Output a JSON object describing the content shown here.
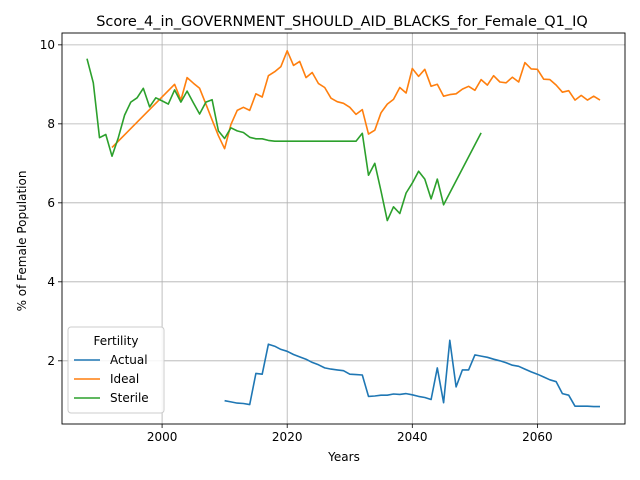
{
  "chart_data": {
    "type": "line",
    "title": "Score_4_in_GOVERNMENT_SHOULD_AID_BLACKS_for_Female_Q1_IQ",
    "xlabel": "Years",
    "ylabel": "% of Female Population",
    "xlim": [
      1984,
      2074
    ],
    "ylim": [
      0.4,
      10.3
    ],
    "xticks": [
      2000,
      2020,
      2040,
      2060
    ],
    "yticks": [
      2,
      4,
      6,
      8,
      10
    ],
    "grid": true,
    "legend": {
      "title": "Fertility",
      "position": "lower-left"
    },
    "series": [
      {
        "name": "Actual",
        "color": "#1f77b4",
        "points": [
          [
            2010,
            0.99
          ],
          [
            2011,
            0.96
          ],
          [
            2012,
            0.93
          ],
          [
            2013,
            0.92
          ],
          [
            2014,
            0.89
          ],
          [
            2015,
            1.68
          ],
          [
            2016,
            1.66
          ],
          [
            2017,
            2.42
          ],
          [
            2018,
            2.37
          ],
          [
            2019,
            2.29
          ],
          [
            2020,
            2.24
          ],
          [
            2021,
            2.16
          ],
          [
            2022,
            2.1
          ],
          [
            2023,
            2.04
          ],
          [
            2024,
            1.96
          ],
          [
            2025,
            1.9
          ],
          [
            2026,
            1.82
          ],
          [
            2027,
            1.79
          ],
          [
            2028,
            1.77
          ],
          [
            2029,
            1.75
          ],
          [
            2030,
            1.66
          ],
          [
            2031,
            1.65
          ],
          [
            2032,
            1.64
          ],
          [
            2033,
            1.1
          ],
          [
            2034,
            1.11
          ],
          [
            2035,
            1.13
          ],
          [
            2036,
            1.13
          ],
          [
            2037,
            1.16
          ],
          [
            2038,
            1.15
          ],
          [
            2039,
            1.17
          ],
          [
            2040,
            1.14
          ],
          [
            2041,
            1.1
          ],
          [
            2042,
            1.07
          ],
          [
            2043,
            1.02
          ],
          [
            2044,
            1.82
          ],
          [
            2045,
            0.94
          ],
          [
            2046,
            2.52
          ],
          [
            2047,
            1.34
          ],
          [
            2048,
            1.77
          ],
          [
            2049,
            1.77
          ],
          [
            2050,
            2.15
          ],
          [
            2051,
            2.12
          ],
          [
            2052,
            2.09
          ],
          [
            2053,
            2.04
          ],
          [
            2054,
            2.0
          ],
          [
            2055,
            1.95
          ],
          [
            2056,
            1.89
          ],
          [
            2057,
            1.86
          ],
          [
            2058,
            1.79
          ],
          [
            2059,
            1.72
          ],
          [
            2060,
            1.66
          ],
          [
            2061,
            1.59
          ],
          [
            2062,
            1.52
          ],
          [
            2063,
            1.47
          ],
          [
            2064,
            1.17
          ],
          [
            2065,
            1.13
          ],
          [
            2066,
            0.85
          ],
          [
            2067,
            0.85
          ],
          [
            2068,
            0.85
          ],
          [
            2069,
            0.84
          ],
          [
            2070,
            0.84
          ]
        ]
      },
      {
        "name": "Ideal",
        "color": "#ff7f0e",
        "points": [
          [
            1992,
            7.4
          ],
          [
            2002,
            9.0
          ],
          [
            2003,
            8.6
          ],
          [
            2004,
            9.17
          ],
          [
            2005,
            9.03
          ],
          [
            2006,
            8.9
          ],
          [
            2007,
            8.5
          ],
          [
            2008,
            8.1
          ],
          [
            2009,
            7.7
          ],
          [
            2010,
            7.37
          ],
          [
            2011,
            7.98
          ],
          [
            2012,
            8.34
          ],
          [
            2013,
            8.42
          ],
          [
            2014,
            8.34
          ],
          [
            2015,
            8.76
          ],
          [
            2016,
            8.68
          ],
          [
            2017,
            9.22
          ],
          [
            2018,
            9.32
          ],
          [
            2019,
            9.45
          ],
          [
            2020,
            9.85
          ],
          [
            2021,
            9.48
          ],
          [
            2022,
            9.58
          ],
          [
            2023,
            9.17
          ],
          [
            2024,
            9.3
          ],
          [
            2025,
            9.02
          ],
          [
            2026,
            8.92
          ],
          [
            2027,
            8.65
          ],
          [
            2028,
            8.56
          ],
          [
            2029,
            8.52
          ],
          [
            2030,
            8.42
          ],
          [
            2031,
            8.24
          ],
          [
            2032,
            8.36
          ],
          [
            2033,
            7.74
          ],
          [
            2034,
            7.84
          ],
          [
            2035,
            8.28
          ],
          [
            2036,
            8.5
          ],
          [
            2037,
            8.62
          ],
          [
            2038,
            8.92
          ],
          [
            2039,
            8.78
          ],
          [
            2040,
            9.4
          ],
          [
            2041,
            9.2
          ],
          [
            2042,
            9.38
          ],
          [
            2043,
            8.95
          ],
          [
            2044,
            9.0
          ],
          [
            2045,
            8.7
          ],
          [
            2046,
            8.74
          ],
          [
            2047,
            8.76
          ],
          [
            2048,
            8.88
          ],
          [
            2049,
            8.95
          ],
          [
            2050,
            8.85
          ],
          [
            2051,
            9.12
          ],
          [
            2052,
            8.98
          ],
          [
            2053,
            9.22
          ],
          [
            2054,
            9.06
          ],
          [
            2055,
            9.04
          ],
          [
            2056,
            9.18
          ],
          [
            2057,
            9.06
          ],
          [
            2058,
            9.55
          ],
          [
            2059,
            9.39
          ],
          [
            2060,
            9.38
          ],
          [
            2061,
            9.13
          ],
          [
            2062,
            9.12
          ],
          [
            2063,
            8.98
          ],
          [
            2064,
            8.8
          ],
          [
            2065,
            8.84
          ],
          [
            2066,
            8.6
          ],
          [
            2067,
            8.72
          ],
          [
            2068,
            8.6
          ],
          [
            2069,
            8.7
          ],
          [
            2070,
            8.6
          ]
        ]
      },
      {
        "name": "Sterile",
        "color": "#2ca02c",
        "points": [
          [
            1988,
            9.65
          ],
          [
            1989,
            9.04
          ],
          [
            1990,
            7.65
          ],
          [
            1991,
            7.73
          ],
          [
            1992,
            7.18
          ],
          [
            1993,
            7.65
          ],
          [
            1994,
            8.22
          ],
          [
            1995,
            8.55
          ],
          [
            1996,
            8.66
          ],
          [
            1997,
            8.9
          ],
          [
            1998,
            8.43
          ],
          [
            1999,
            8.66
          ],
          [
            2000,
            8.58
          ],
          [
            2001,
            8.5
          ],
          [
            2002,
            8.86
          ],
          [
            2003,
            8.55
          ],
          [
            2004,
            8.83
          ],
          [
            2005,
            8.53
          ],
          [
            2006,
            8.25
          ],
          [
            2007,
            8.55
          ],
          [
            2008,
            8.61
          ],
          [
            2009,
            7.82
          ],
          [
            2010,
            7.63
          ],
          [
            2011,
            7.9
          ],
          [
            2012,
            7.82
          ],
          [
            2013,
            7.78
          ],
          [
            2014,
            7.66
          ],
          [
            2015,
            7.62
          ],
          [
            2016,
            7.62
          ],
          [
            2017,
            7.58
          ],
          [
            2018,
            7.56
          ],
          [
            2031,
            7.56
          ],
          [
            2032,
            7.76
          ],
          [
            2033,
            6.7
          ],
          [
            2034,
            7.0
          ],
          [
            2035,
            6.3
          ],
          [
            2036,
            5.55
          ],
          [
            2037,
            5.9
          ],
          [
            2038,
            5.73
          ],
          [
            2039,
            6.25
          ],
          [
            2040,
            6.5
          ],
          [
            2041,
            6.8
          ],
          [
            2042,
            6.6
          ],
          [
            2043,
            6.1
          ],
          [
            2044,
            6.6
          ],
          [
            2045,
            5.95
          ],
          [
            2051,
            7.77
          ]
        ]
      }
    ]
  }
}
